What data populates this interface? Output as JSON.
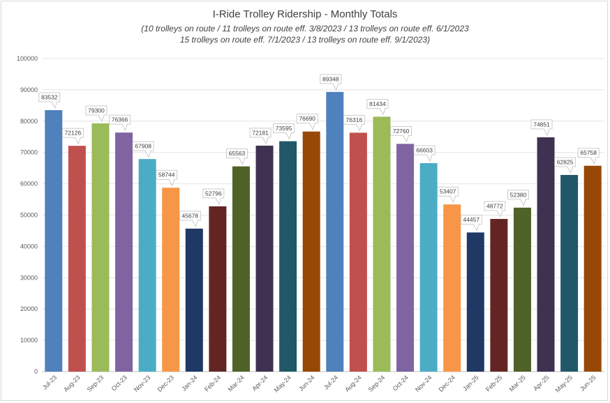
{
  "chart_data": {
    "type": "bar",
    "title": "I-Ride Trolley Ridership - Monthly Totals",
    "subtitle_lines": [
      "(10 trolleys on route / 11 trolleys on route eff. 3/8/2023 / 13 trolleys on route eff. 6/1/2023",
      "15 trolleys on route eff. 7/1/2023 / 13 trolleys on route eff. 9/1/2023)"
    ],
    "xlabel": "",
    "ylabel": "",
    "ylim": [
      0,
      100000
    ],
    "yticks": [
      0,
      10000,
      20000,
      30000,
      40000,
      50000,
      60000,
      70000,
      80000,
      90000,
      100000
    ],
    "grid": true,
    "legend": "none",
    "categories": [
      "Jul-23",
      "Aug-23",
      "Sep-23",
      "Oct-23",
      "Nov-23",
      "Dec-23",
      "Jan-24",
      "Feb-24",
      "Mar-24",
      "Apr-24",
      "May-24",
      "Jun-24",
      "Jul-24",
      "Aug-24",
      "Sep-24",
      "Oct-24",
      "Nov-24",
      "Dec-24",
      "Jan-25",
      "Feb-25",
      "Mar-25",
      "Apr-25",
      "May-25",
      "Jun-25"
    ],
    "values": [
      83532,
      72126,
      79300,
      76366,
      67908,
      58744,
      45678,
      52796,
      65563,
      72181,
      73595,
      76690,
      89348,
      76316,
      81434,
      72760,
      66603,
      53407,
      44457,
      48772,
      52380,
      74851,
      62825,
      65758
    ],
    "colors": [
      "#4f81bd",
      "#c0504d",
      "#9bbb59",
      "#8064a2",
      "#4bacc6",
      "#f79646",
      "#1f3864",
      "#632523",
      "#4f6228",
      "#3f3151",
      "#205867",
      "#974806",
      "#4f81bd",
      "#c0504d",
      "#9bbb59",
      "#8064a2",
      "#4bacc6",
      "#f79646",
      "#1f3864",
      "#632523",
      "#4f6228",
      "#3f3151",
      "#205867",
      "#974806"
    ]
  }
}
